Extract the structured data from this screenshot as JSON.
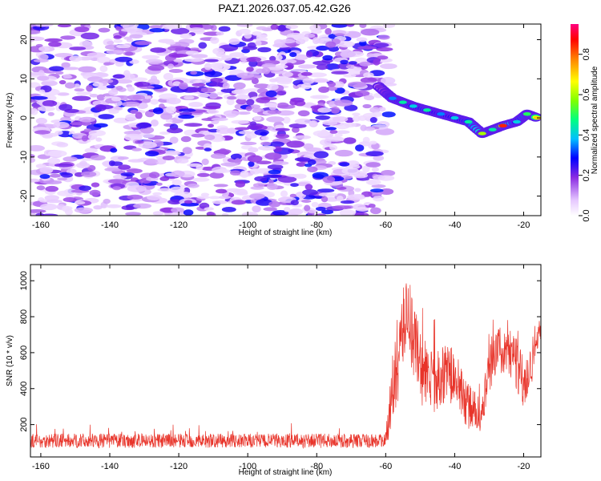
{
  "chart_data": [
    {
      "type": "heatmap",
      "title": "PAZ1.2026.037.05.42.G26",
      "xlabel": "Height of straight line (km)",
      "ylabel": "Frequency (Hz)",
      "xlim": [
        -163,
        -15
      ],
      "ylim": [
        -25,
        24
      ],
      "x_ticks": [
        "-160",
        "-140",
        "-120",
        "-100",
        "-80",
        "-60",
        "-40",
        "-20"
      ],
      "y_ticks": [
        "20",
        "10",
        "0",
        "-10",
        "-20"
      ],
      "colorbar": {
        "label": "Normalized spectral amplitude",
        "range": [
          0.0,
          0.95
        ],
        "ticks": [
          "0.0",
          "0.2",
          "0.4",
          "0.6",
          "0.8"
        ]
      },
      "noise_region": {
        "x_range": [
          -163,
          -59
        ],
        "amplitude_range": [
          0.05,
          0.3
        ]
      },
      "signal_ridge": [
        {
          "x": -62,
          "freq": 8,
          "amp": 0.2
        },
        {
          "x": -58,
          "freq": 5,
          "amp": 0.35
        },
        {
          "x": -55,
          "freq": 4,
          "amp": 0.45
        },
        {
          "x": -52,
          "freq": 3,
          "amp": 0.4
        },
        {
          "x": -48,
          "freq": 2,
          "amp": 0.45
        },
        {
          "x": -44,
          "freq": 1,
          "amp": 0.35
        },
        {
          "x": -40,
          "freq": 0,
          "amp": 0.4
        },
        {
          "x": -36,
          "freq": -1,
          "amp": 0.45
        },
        {
          "x": -32,
          "freq": -4,
          "amp": 0.6
        },
        {
          "x": -29,
          "freq": -3,
          "amp": 0.45
        },
        {
          "x": -26,
          "freq": -2,
          "amp": 0.85
        },
        {
          "x": -22,
          "freq": -1,
          "amp": 0.4
        },
        {
          "x": -19,
          "freq": 1,
          "amp": 0.5
        },
        {
          "x": -16,
          "freq": 0,
          "amp": 0.7
        }
      ]
    },
    {
      "type": "line",
      "xlabel": "Height of straight line (km)",
      "ylabel": "SNR (10 * v/v)",
      "xlim": [
        -163,
        -15
      ],
      "ylim": [
        20,
        1090
      ],
      "x_ticks": [
        "-160",
        "-140",
        "-120",
        "-100",
        "-80",
        "-60",
        "-40",
        "-20"
      ],
      "y_ticks": [
        "200",
        "400",
        "600",
        "800",
        "1000"
      ],
      "series": [
        {
          "name": "SNR",
          "color": "#e8342a",
          "envelope_x": [
            -163,
            -60,
            -58,
            -56,
            -54,
            -52,
            -50,
            -48,
            -46,
            -44,
            -42,
            -40,
            -38,
            -36,
            -34,
            -32,
            -30,
            -28,
            -26,
            -24,
            -22,
            -20,
            -18,
            -16,
            -15
          ],
          "envelope_mean": [
            110,
            110,
            380,
            600,
            850,
            700,
            520,
            460,
            430,
            470,
            500,
            450,
            380,
            300,
            280,
            240,
            520,
            620,
            600,
            560,
            580,
            430,
            520,
            700,
            720
          ],
          "envelope_spread": [
            40,
            40,
            200,
            230,
            220,
            250,
            220,
            200,
            170,
            160,
            170,
            150,
            150,
            130,
            110,
            90,
            160,
            130,
            120,
            130,
            200,
            150,
            150,
            80,
            60
          ]
        }
      ]
    }
  ]
}
